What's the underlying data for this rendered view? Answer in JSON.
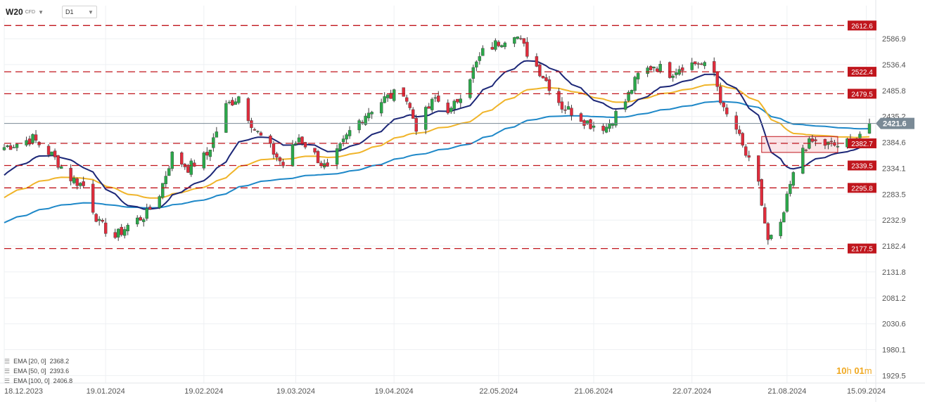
{
  "toolbar": {
    "symbol": "W20",
    "instrument_type": "CFD",
    "timeframe": "D1"
  },
  "countdown": {
    "hours": "10",
    "hours_unit": "h",
    "minutes": "01",
    "minutes_unit": "m"
  },
  "colors": {
    "bull": "#2ba84a",
    "bear": "#e02c3c",
    "ema20": "#1c2777",
    "ema50": "#f0b429",
    "ema100": "#1e88c8",
    "level": "#c0161d",
    "price": "#7a8a96"
  },
  "chart_data": {
    "type": "candlestick",
    "instrument": "W20",
    "timeframe": "D1",
    "x_axis": {
      "tick_labels": [
        "18.12.2023",
        "19.01.2024",
        "19.02.2024",
        "19.03.2024",
        "19.04.2024",
        "22.05.2024",
        "21.06.2024",
        "22.07.2024",
        "21.08.2024",
        "15.09.2024"
      ],
      "range": [
        "2023-12-18",
        "2024-09-18"
      ]
    },
    "y_axis": {
      "tick_labels": [
        "2586.9",
        "2536.4",
        "2485.8",
        "2435.2",
        "2384.6",
        "2334.1",
        "2283.5",
        "2232.9",
        "2182.4",
        "2131.8",
        "2081.2",
        "2030.6",
        "1980.1",
        "1929.5"
      ],
      "range": [
        1915,
        2635
      ],
      "position": "right"
    },
    "grid": true,
    "current_price": "2421.6",
    "horizontal_levels": [
      {
        "value": 2612.6,
        "label": "2612.6"
      },
      {
        "value": 2522.4,
        "label": "2522.4"
      },
      {
        "value": 2479.5,
        "label": "2479.5"
      },
      {
        "value": 2382.7,
        "label": "2382.7"
      },
      {
        "value": 2339.5,
        "label": "2339.5"
      },
      {
        "value": 2295.8,
        "label": "2295.8"
      },
      {
        "value": 2177.5,
        "label": "2177.5"
      }
    ],
    "consolidation_box": {
      "from": "2024-08-13",
      "to": "2024-09-06",
      "low": 2365,
      "high": 2396
    },
    "indicators": [
      {
        "name": "EMA [20, 0]",
        "value": "2368.2",
        "color": "#1c2777"
      },
      {
        "name": "EMA [50, 0]",
        "value": "2393.6",
        "color": "#f0b429"
      },
      {
        "name": "EMA [100, 0]",
        "value": "2406.8",
        "color": "#1e88c8"
      }
    ],
    "close_path": [
      [
        "2023-12-18",
        2375
      ],
      [
        "2023-12-27",
        2392
      ],
      [
        "2024-01-02",
        2360
      ],
      [
        "2024-01-08",
        2315
      ],
      [
        "2024-01-12",
        2300
      ],
      [
        "2024-01-17",
        2225
      ],
      [
        "2024-01-22",
        2200
      ],
      [
        "2024-01-26",
        2222
      ],
      [
        "2024-02-01",
        2245
      ],
      [
        "2024-02-05",
        2285
      ],
      [
        "2024-02-09",
        2360
      ],
      [
        "2024-02-14",
        2335
      ],
      [
        "2024-02-20",
        2360
      ],
      [
        "2024-02-26",
        2455
      ],
      [
        "2024-03-01",
        2475
      ],
      [
        "2024-03-06",
        2410
      ],
      [
        "2024-03-12",
        2365
      ],
      [
        "2024-03-15",
        2340
      ],
      [
        "2024-03-20",
        2395
      ],
      [
        "2024-03-25",
        2360
      ],
      [
        "2024-03-29",
        2330
      ],
      [
        "2024-04-05",
        2405
      ],
      [
        "2024-04-10",
        2440
      ],
      [
        "2024-04-16",
        2470
      ],
      [
        "2024-04-22",
        2485
      ],
      [
        "2024-04-26",
        2415
      ],
      [
        "2024-05-02",
        2470
      ],
      [
        "2024-05-07",
        2445
      ],
      [
        "2024-05-13",
        2515
      ],
      [
        "2024-05-17",
        2560
      ],
      [
        "2024-05-22",
        2580
      ],
      [
        "2024-05-27",
        2600
      ],
      [
        "2024-05-31",
        2560
      ],
      [
        "2024-06-05",
        2515
      ],
      [
        "2024-06-11",
        2455
      ],
      [
        "2024-06-14",
        2445
      ],
      [
        "2024-06-20",
        2420
      ],
      [
        "2024-06-25",
        2415
      ],
      [
        "2024-07-01",
        2465
      ],
      [
        "2024-07-05",
        2515
      ],
      [
        "2024-07-10",
        2535
      ],
      [
        "2024-07-15",
        2520
      ],
      [
        "2024-07-19",
        2535
      ],
      [
        "2024-07-24",
        2540
      ],
      [
        "2024-07-29",
        2520
      ],
      [
        "2024-08-01",
        2445
      ],
      [
        "2024-08-05",
        2410
      ],
      [
        "2024-08-07",
        2375
      ],
      [
        "2024-08-09",
        2345
      ],
      [
        "2024-08-12",
        2300
      ],
      [
        "2024-08-15",
        2190
      ],
      [
        "2024-08-19",
        2220
      ],
      [
        "2024-08-22",
        2300
      ],
      [
        "2024-08-26",
        2375
      ],
      [
        "2024-08-29",
        2385
      ],
      [
        "2024-09-03",
        2380
      ],
      [
        "2024-09-06",
        2378
      ],
      [
        "2024-09-10",
        2385
      ],
      [
        "2024-09-12",
        2395
      ],
      [
        "2024-09-16",
        2421.6
      ]
    ]
  }
}
